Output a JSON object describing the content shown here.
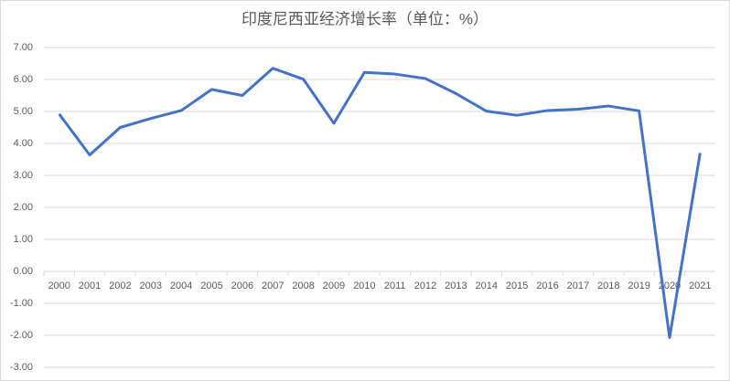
{
  "chart_data": {
    "type": "line",
    "title": "印度尼西亚经济增长率（单位：%）",
    "categories": [
      "2000",
      "2001",
      "2002",
      "2003",
      "2004",
      "2005",
      "2006",
      "2007",
      "2008",
      "2009",
      "2010",
      "2011",
      "2012",
      "2013",
      "2014",
      "2015",
      "2016",
      "2017",
      "2018",
      "2019",
      "2020",
      "2021"
    ],
    "series": [
      {
        "color": "#4472c4",
        "values": [
          4.92,
          3.64,
          4.5,
          4.78,
          5.03,
          5.69,
          5.5,
          6.35,
          6.01,
          4.63,
          6.22,
          6.17,
          6.03,
          5.56,
          5.01,
          4.88,
          5.03,
          5.07,
          5.17,
          5.02,
          -2.07,
          3.7
        ]
      }
    ],
    "ylim": [
      -3,
      7
    ],
    "yticks": [
      {
        "value": -3,
        "label": "-3.00"
      },
      {
        "value": -2,
        "label": "-2.00"
      },
      {
        "value": -1,
        "label": "-1.00"
      },
      {
        "value": 0,
        "label": "0.00"
      },
      {
        "value": 1,
        "label": "1.00"
      },
      {
        "value": 2,
        "label": "2.00"
      },
      {
        "value": 3,
        "label": "3.00"
      },
      {
        "value": 4,
        "label": "4.00"
      },
      {
        "value": 5,
        "label": "5.00"
      },
      {
        "value": 6,
        "label": "6.00"
      },
      {
        "value": 7,
        "label": "7.00"
      }
    ],
    "grid": true
  }
}
